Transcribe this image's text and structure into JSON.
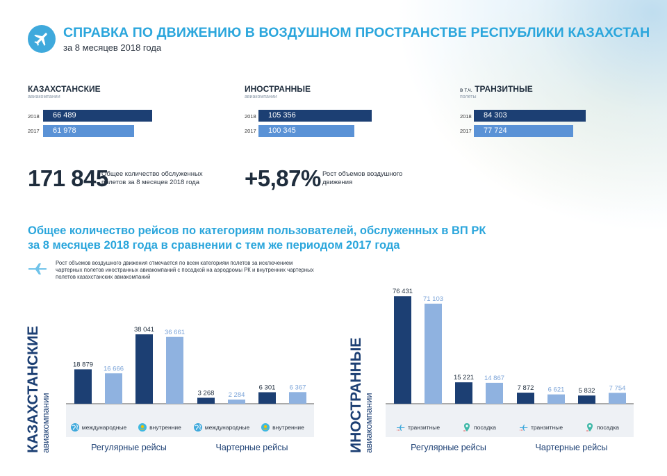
{
  "header": {
    "title": "СПРАВКА ПО ДВИЖЕНИЮ В ВОЗДУШНОМ ПРОСТРАНСТВЕ РЕСПУБЛИКИ КАЗАХСТАН",
    "subtitle": "за 8 месяцев 2018 года",
    "icon": "airplane-icon"
  },
  "summary": {
    "groups": [
      {
        "title": "КАЗАХСТАНСКИЕ",
        "sub": "авиакомпании",
        "rows": [
          {
            "year": "2018",
            "value": "66 489"
          },
          {
            "year": "2017",
            "value": "61 978"
          }
        ]
      },
      {
        "title": "ИНОСТРАННЫЕ",
        "sub": "авиакомпании",
        "rows": [
          {
            "year": "2018",
            "value": "105 356"
          },
          {
            "year": "2017",
            "value": "100 345"
          }
        ]
      },
      {
        "title_prefix": "в т.ч.",
        "title": "ТРАНЗИТНЫЕ",
        "sub": "полеты",
        "rows": [
          {
            "year": "2018",
            "value": "84 303"
          },
          {
            "year": "2017",
            "value": "77 724"
          }
        ]
      }
    ],
    "total_number": "171 845",
    "total_desc": "Общее количество обслуженных полетов за 8 месяцев 2018 года",
    "growth_number": "+5,87%",
    "growth_desc": "Рост объемов воздушного движения"
  },
  "section": {
    "title_line1": "Общее количество рейсов по категориям пользователей, обслуженных в ВП РК",
    "title_line2": "за 8 месяцев 2018 года в сравнении с тем же периодом 2017 года",
    "note": "Рост объемов воздушного движения отмечается по всем категориям полетов за исключением чартерных полетов иностранных авиакомпаний с посадкой на аэродромы РК и внутренних чартерных полетов казахстанских авиакомпаний",
    "note_icon": "airplane-icon"
  },
  "colors": {
    "accent": "#2ba6dc",
    "dark_bar": "#1c3f73",
    "light_bar": "#8fb2e0",
    "summary_light": "#5a92d6"
  },
  "chart_data": [
    {
      "type": "bar",
      "title": "КАЗАХСТАНСКИЕ",
      "subtitle": "авиакомпании",
      "bars": [
        {
          "value": 18879,
          "label": "18 879",
          "year": "2018",
          "category": "международные",
          "group": "Регулярные рейсы"
        },
        {
          "value": 16666,
          "label": "16 666",
          "year": "2017",
          "category": "международные",
          "group": "Регулярные рейсы"
        },
        {
          "value": 38041,
          "label": "38 041",
          "year": "2018",
          "category": "внутренние",
          "group": "Регулярные рейсы"
        },
        {
          "value": 36661,
          "label": "36 661",
          "year": "2017",
          "category": "внутренние",
          "group": "Регулярные рейсы"
        },
        {
          "value": 3268,
          "label": "3 268",
          "year": "2018",
          "category": "международные",
          "group": "Чартерные рейсы"
        },
        {
          "value": 2284,
          "label": "2 284",
          "year": "2017",
          "category": "международные",
          "group": "Чартерные рейсы"
        },
        {
          "value": 6301,
          "label": "6 301",
          "year": "2018",
          "category": "внутренние",
          "group": "Чартерные рейсы"
        },
        {
          "value": 6367,
          "label": "6 367",
          "year": "2017",
          "category": "внутренние",
          "group": "Чартерные рейсы"
        }
      ],
      "subcategories": [
        {
          "label": "международные",
          "icon": "globe-icon"
        },
        {
          "label": "внутренние",
          "icon": "kazakhstan-flag-icon"
        },
        {
          "label": "международные",
          "icon": "globe-icon"
        },
        {
          "label": "внутренние",
          "icon": "kazakhstan-flag-icon"
        }
      ],
      "groups": [
        "Регулярные рейсы",
        "Чартерные рейсы"
      ],
      "ylim": [
        0,
        40000
      ]
    },
    {
      "type": "bar",
      "title": "ИНОСТРАННЫЕ",
      "subtitle": "авиакомпании",
      "bars": [
        {
          "value": 76431,
          "label": "76 431",
          "year": "2018",
          "category": "транзитные",
          "group": "Регулярные рейсы"
        },
        {
          "value": 71103,
          "label": "71 103",
          "year": "2017",
          "category": "транзитные",
          "group": "Регулярные рейсы"
        },
        {
          "value": 15221,
          "label": "15 221",
          "year": "2018",
          "category": "посадка",
          "group": "Регулярные рейсы"
        },
        {
          "value": 14867,
          "label": "14 867",
          "year": "2017",
          "category": "посадка",
          "group": "Регулярные рейсы"
        },
        {
          "value": 7872,
          "label": "7 872",
          "year": "2018",
          "category": "транзитные",
          "group": "Чартерные рейсы"
        },
        {
          "value": 6621,
          "label": "6 621",
          "year": "2017",
          "category": "транзитные",
          "group": "Чартерные рейсы"
        },
        {
          "value": 5832,
          "label": "5 832",
          "year": "2018",
          "category": "посадка",
          "group": "Чартерные рейсы"
        },
        {
          "value": 7754,
          "label": "7 754",
          "year": "2017",
          "category": "посадка",
          "group": "Чартерные рейсы"
        }
      ],
      "subcategories": [
        {
          "label": "транзитные",
          "icon": "transit-plane-icon"
        },
        {
          "label": "посадка",
          "icon": "landing-pin-icon"
        },
        {
          "label": "транзитные",
          "icon": "transit-plane-icon"
        },
        {
          "label": "посадка",
          "icon": "landing-pin-icon"
        }
      ],
      "groups": [
        "Регулярные рейсы",
        "Чартерные рейсы"
      ],
      "ylim": [
        0,
        80000
      ]
    }
  ]
}
